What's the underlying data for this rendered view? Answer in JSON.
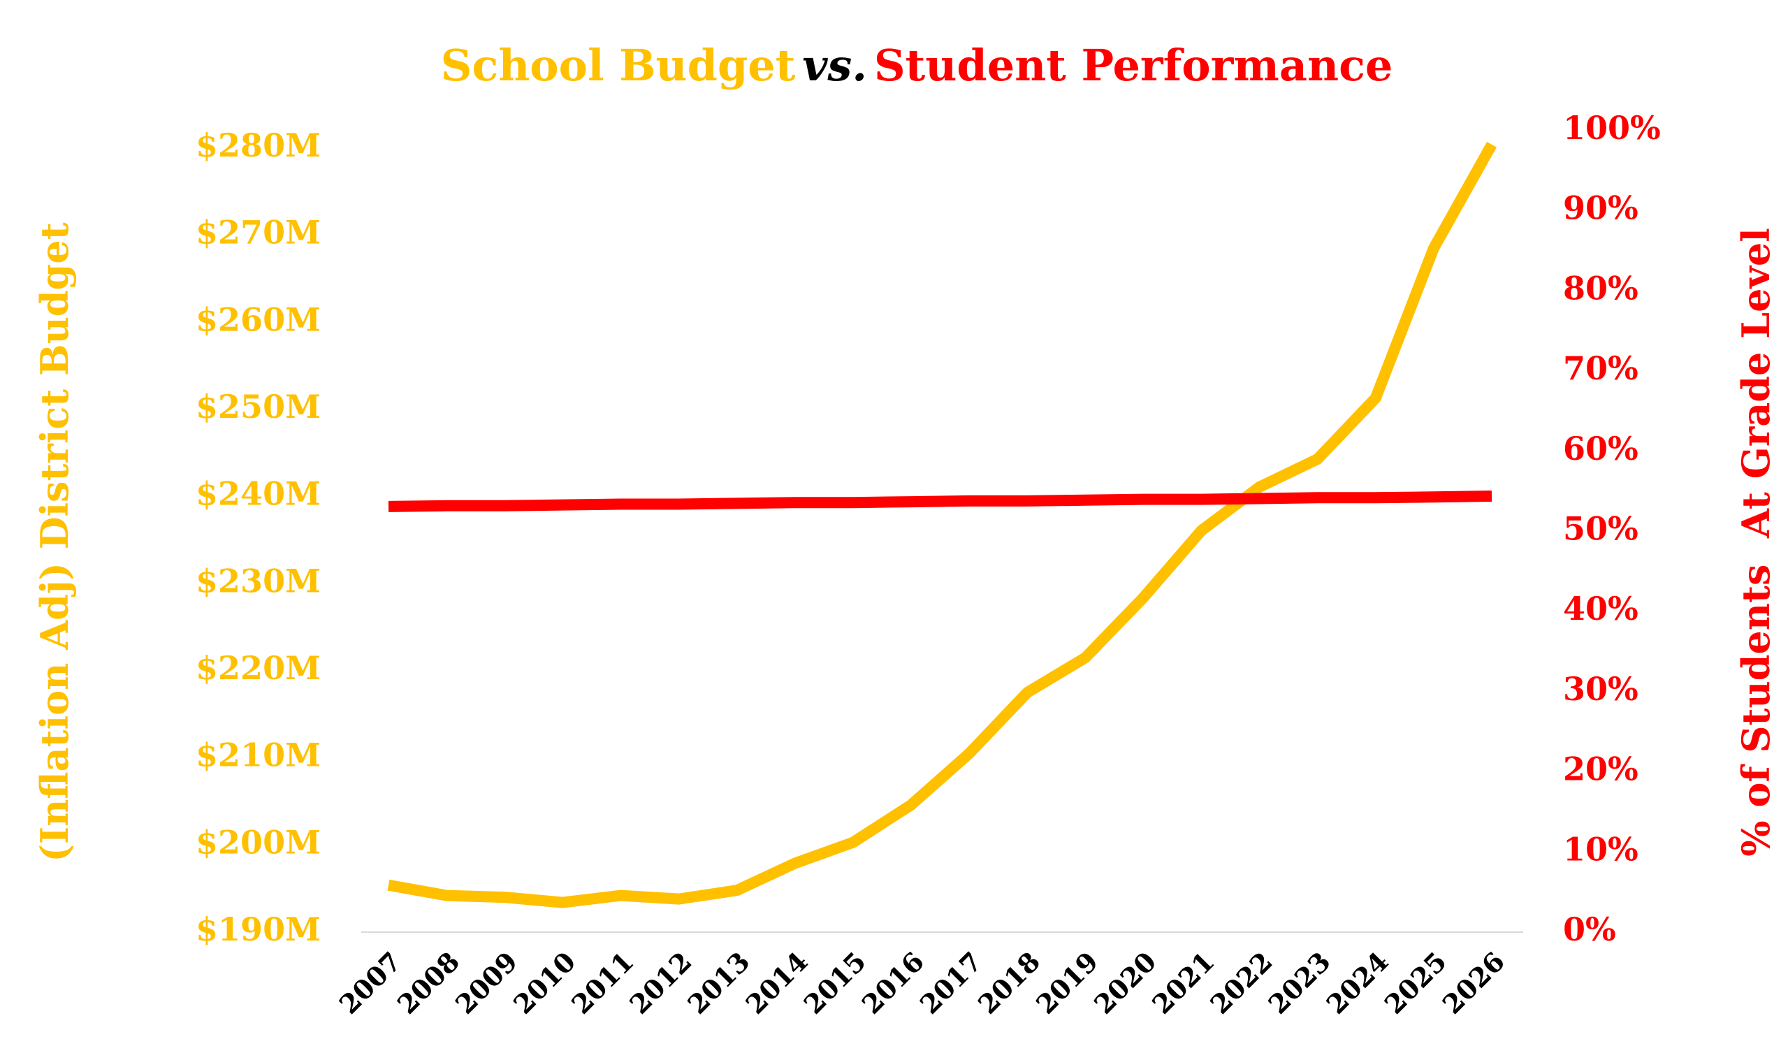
{
  "chart_data": {
    "type": "line",
    "title": {
      "parts": [
        {
          "text": "School Budget",
          "color": "#FFC000",
          "italic": false
        },
        {
          "text": "vs.",
          "color": "#000000",
          "italic": true
        },
        {
          "text": "Student Performance",
          "color": "#FF0000",
          "italic": false
        }
      ]
    },
    "ylabel": "(Inflation Adj) District Budget",
    "y2label": "% of Students  At Grade Level",
    "ylabel_color": "#FFC000",
    "y2label_color": "#FF0000",
    "categories": [
      "2007",
      "2008",
      "2009",
      "2010",
      "2011",
      "2012",
      "2013",
      "2014",
      "2015",
      "2016",
      "2017",
      "2018",
      "2019",
      "2020",
      "2021",
      "2022",
      "2023",
      "2024",
      "2025",
      "2026"
    ],
    "series": [
      {
        "color": "#FFC000",
        "axis": "y",
        "values": [
          195.4,
          194.2,
          194.0,
          193.4,
          194.2,
          193.8,
          194.8,
          197.9,
          200.3,
          204.6,
          210.5,
          217.5,
          221.5,
          228.4,
          236.1,
          241.1,
          244.3,
          251.3,
          268.5,
          280.4
        ]
      },
      {
        "color": "#FF0000",
        "axis": "y2",
        "values": [
          53.1,
          53.2,
          53.2,
          53.3,
          53.4,
          53.4,
          53.5,
          53.6,
          53.6,
          53.7,
          53.8,
          53.8,
          53.9,
          54.0,
          54.0,
          54.1,
          54.2,
          54.2,
          54.3,
          54.4
        ]
      }
    ],
    "ylim": [
      190,
      282
    ],
    "yticks": [
      {
        "value": 190,
        "label": "$190M"
      },
      {
        "value": 200,
        "label": "$200M"
      },
      {
        "value": 210,
        "label": "$210M"
      },
      {
        "value": 220,
        "label": "$220M"
      },
      {
        "value": 230,
        "label": "$230M"
      },
      {
        "value": 240,
        "label": "$240M"
      },
      {
        "value": 250,
        "label": "$250M"
      },
      {
        "value": 260,
        "label": "$260M"
      },
      {
        "value": 270,
        "label": "$270M"
      },
      {
        "value": 280,
        "label": "$280M"
      }
    ],
    "y2lim": [
      0,
      100
    ],
    "y2ticks": [
      {
        "value": 0,
        "label": "0%"
      },
      {
        "value": 10,
        "label": "10%"
      },
      {
        "value": 20,
        "label": "20%"
      },
      {
        "value": 30,
        "label": "30%"
      },
      {
        "value": 40,
        "label": "40%"
      },
      {
        "value": 50,
        "label": "50%"
      },
      {
        "value": 60,
        "label": "60%"
      },
      {
        "value": 70,
        "label": "70%"
      },
      {
        "value": 80,
        "label": "80%"
      },
      {
        "value": 90,
        "label": "90%"
      },
      {
        "value": 100,
        "label": "100%"
      }
    ],
    "grid": false
  }
}
